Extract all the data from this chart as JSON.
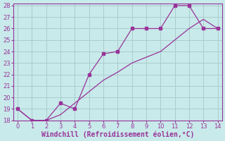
{
  "xlabel": "Windchill (Refroidissement éolien,°C)",
  "bg_color": "#c8eaea",
  "grid_color": "#aacccc",
  "line_color": "#993399",
  "line1_x": [
    0,
    1,
    2,
    3,
    4,
    5,
    6,
    7,
    8,
    9,
    10,
    11,
    12,
    13,
    14
  ],
  "line1_y": [
    19,
    18,
    18,
    19.5,
    19,
    22,
    23.8,
    24,
    26,
    26,
    26,
    28,
    28,
    26,
    26
  ],
  "line2_x": [
    0,
    1,
    2,
    3,
    4,
    5,
    6,
    7,
    8,
    9,
    10,
    11,
    12,
    13,
    14
  ],
  "line2_y": [
    19,
    18,
    18,
    18.5,
    19.5,
    20.5,
    21.5,
    22.2,
    23,
    23.5,
    24,
    25,
    26,
    26.8,
    26
  ],
  "ylim": [
    18,
    28
  ],
  "xlim": [
    -0.3,
    14.3
  ],
  "yticks": [
    18,
    19,
    20,
    21,
    22,
    23,
    24,
    25,
    26,
    27,
    28
  ],
  "xticks": [
    0,
    1,
    2,
    3,
    4,
    5,
    6,
    7,
    8,
    9,
    10,
    11,
    12,
    13,
    14
  ],
  "tick_fontsize": 6,
  "xlabel_fontsize": 7,
  "marker": "s",
  "markersize": 2.5,
  "linewidth": 0.9
}
